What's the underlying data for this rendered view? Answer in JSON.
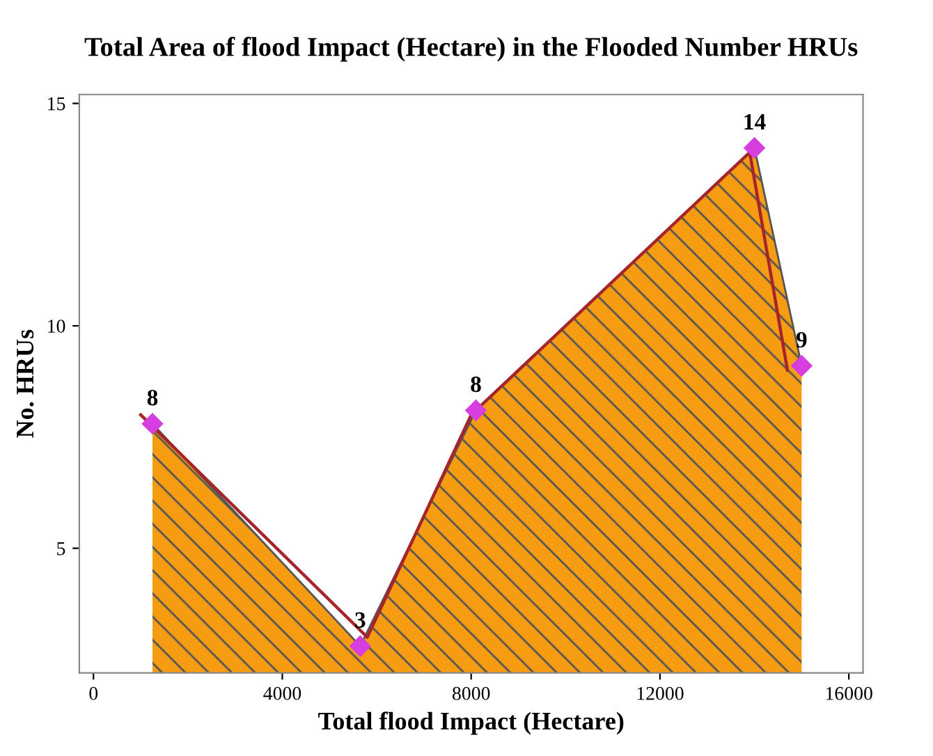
{
  "chart_data": {
    "type": "area",
    "title": "Total Area of flood Impact (Hectare) in the Flooded Number HRUs",
    "xlabel": "Total flood Impact (Hectare)",
    "ylabel": "No. HRUs",
    "series": [
      {
        "color": "#f59c12",
        "x": [
          1250,
          5650,
          8100,
          14000,
          15000
        ],
        "values": [
          7.8,
          2.8,
          8.1,
          14.0,
          9.1
        ],
        "marker": "diamond",
        "value_labels": [
          "8",
          "3",
          "8",
          "14",
          "9"
        ]
      },
      {
        "type": "line",
        "color": "#a5252a",
        "x": [
          1000,
          5800,
          8000,
          13900,
          14700
        ],
        "values": [
          8.0,
          3.0,
          8.0,
          13.9,
          9.0
        ]
      }
    ],
    "xlim": [
      -300,
      16300
    ],
    "ylim": [
      2.2,
      15.2
    ],
    "xticks": [
      0,
      4000,
      8000,
      12000,
      16000
    ],
    "yticks": [
      5,
      10,
      15
    ],
    "grid": false,
    "legend": false
  }
}
